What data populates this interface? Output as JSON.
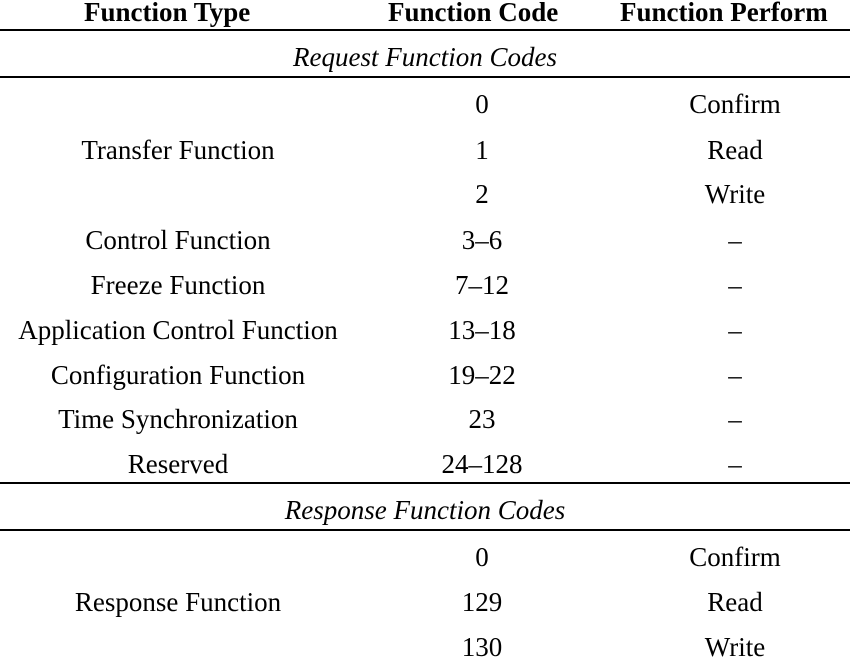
{
  "table": {
    "headers": {
      "type": "Function Type",
      "code": "Function Code",
      "perform": "Function Perform"
    },
    "request": {
      "title": "Request Function Codes",
      "transfer_label": "Transfer Function",
      "rows": [
        {
          "code": "0",
          "perform": "Confirm"
        },
        {
          "code": "1",
          "perform": "Read"
        },
        {
          "code": "2",
          "perform": "Write"
        },
        {
          "type": "Control Function",
          "code": "3–6",
          "perform": "–"
        },
        {
          "type": "Freeze Function",
          "code": "7–12",
          "perform": "–"
        },
        {
          "type": "Application Control Function",
          "code": "13–18",
          "perform": "–"
        },
        {
          "type": "Configuration Function",
          "code": "19–22",
          "perform": "–"
        },
        {
          "type": "Time Synchronization",
          "code": "23",
          "perform": "–"
        },
        {
          "type": "Reserved",
          "code": "24–128",
          "perform": "–"
        }
      ]
    },
    "response": {
      "title": "Response Function Codes",
      "response_label": "Response Function",
      "rows": [
        {
          "code": "0",
          "perform": "Confirm"
        },
        {
          "code": "129",
          "perform": "Read"
        },
        {
          "code": "130",
          "perform": "Write"
        }
      ]
    }
  }
}
